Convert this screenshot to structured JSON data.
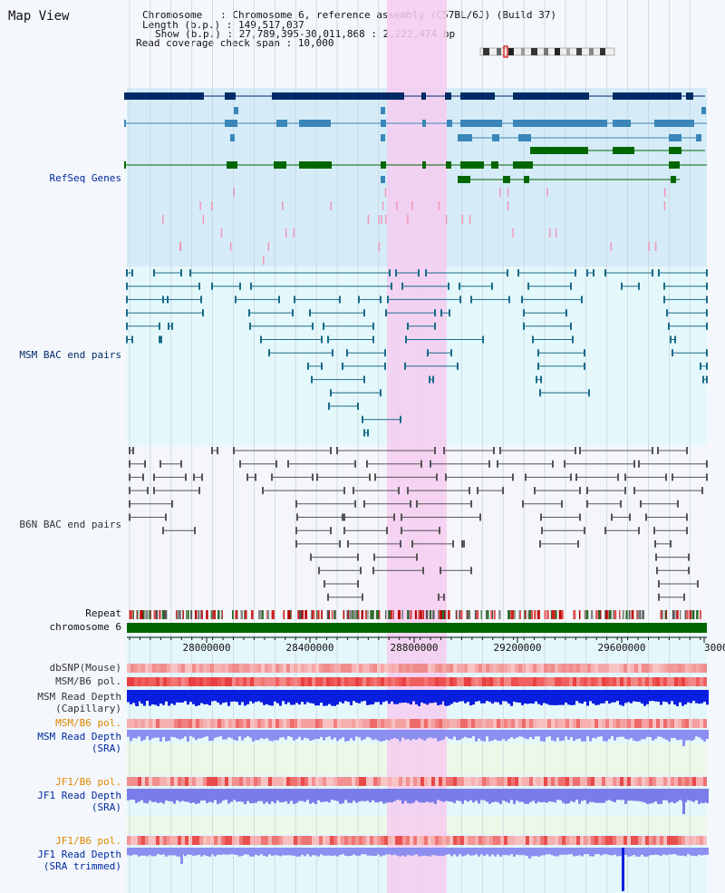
{
  "header": {
    "title": "Map View",
    "chromosome_line": "Chromosome   : Chromosome 6, reference assembly (C57BL/6J) (Build 37)",
    "length_line": "Length (b.p.) : 149,517,037",
    "show_line": "Show (b.p.) : 27,789,395-30,011,868 : 2,222,474 bp",
    "span_line": "Read coverage check span : 10,000"
  },
  "tracks": {
    "refseq": "RefSeq Genes",
    "msm_bac": "MSM BAC end pairs",
    "b6n_bac": "B6N BAC end pairs",
    "repeat": "Repeat",
    "chromosome": "chromosome 6",
    "dbsnp": "dbSNP(Mouse)",
    "msm_b6_pol_1": "MSM/B6 pol.",
    "msm_depth_cap_1": "MSM Read Depth",
    "msm_depth_cap_2": "(Capillary)",
    "msm_b6_pol_2": "MSM/B6 pol.",
    "msm_depth_sra_1": "MSM Read Depth",
    "msm_depth_sra_2": "(SRA)",
    "jf1_pol_1": "JF1/B6 pol.",
    "jf1_depth_1": "JF1 Read Depth",
    "jf1_depth_2": "(SRA)",
    "jf1_pol_2": "JF1/B6 pol.",
    "jf1_trim_1": "JF1 Read Depth",
    "jf1_trim_2": "(SRA trimmed)"
  },
  "axis": {
    "ticks": [
      "28000000",
      "28400000",
      "28800000",
      "29200000",
      "29600000",
      "3000"
    ]
  },
  "colors": {
    "refseq_bg": "#d5ecf8",
    "msm_bg": "#e4f8fb",
    "b6n_bg": "#f4f6fb",
    "highlight": "#f6cdf0",
    "chromosome_bar": "#006600",
    "navy": "#002a66",
    "teal": "#1a6b8a",
    "green": "#006600",
    "pink": "#f098b8",
    "label_blue": "#002aa0",
    "label_orange": "#e08800",
    "label_grey": "#333333"
  }
}
